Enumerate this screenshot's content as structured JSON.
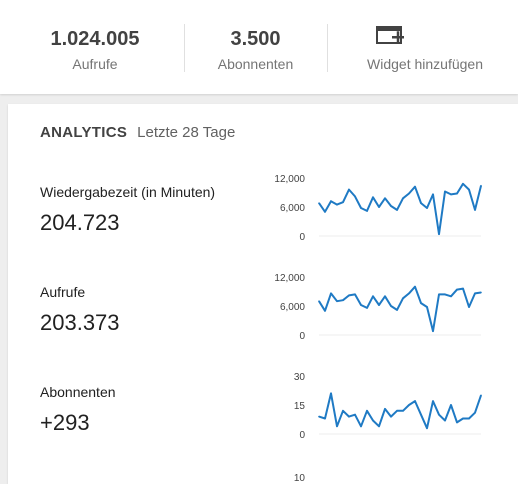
{
  "summary": {
    "views": {
      "value": "1.024.005",
      "label": "Aufrufe"
    },
    "subscribers": {
      "value": "3.500",
      "label": "Abonnenten"
    },
    "widget_button": {
      "label": "Widget hinzufügen",
      "icon": "add-widget-icon"
    }
  },
  "analytics": {
    "title": "ANALYTICS",
    "period": "Letzte 28 Tage",
    "metrics": [
      {
        "label": "Wiedergabezeit (in Minuten)",
        "value": "204.723"
      },
      {
        "label": "Aufrufe",
        "value": "203.373"
      },
      {
        "label": "Abonnenten",
        "value": "+293"
      }
    ]
  },
  "colors": {
    "line": "#1f7ac4",
    "accent_text": "#424242"
  },
  "chart_data": [
    {
      "type": "line",
      "ylim": [
        0,
        12000
      ],
      "yticks": [
        "12,000",
        "6,000",
        "0"
      ],
      "x": [
        1,
        2,
        3,
        4,
        5,
        6,
        7,
        8,
        9,
        10,
        11,
        12,
        13,
        14,
        15,
        16,
        17,
        18,
        19,
        20,
        21,
        22,
        23,
        24,
        25,
        26,
        27,
        28
      ],
      "values": [
        6800,
        5000,
        7200,
        6500,
        7000,
        9600,
        8200,
        5800,
        5200,
        8000,
        6000,
        7800,
        6200,
        5400,
        7800,
        8800,
        10200,
        6800,
        5800,
        8600,
        400,
        9200,
        8600,
        8800,
        10800,
        9600,
        5400,
        10400
      ]
    },
    {
      "type": "line",
      "ylim": [
        0,
        12000
      ],
      "yticks": [
        "12,000",
        "6,000",
        "0"
      ],
      "x": [
        1,
        2,
        3,
        4,
        5,
        6,
        7,
        8,
        9,
        10,
        11,
        12,
        13,
        14,
        15,
        16,
        17,
        18,
        19,
        20,
        21,
        22,
        23,
        24,
        25,
        26,
        27,
        28
      ],
      "values": [
        7000,
        5000,
        8600,
        7000,
        7200,
        8200,
        8400,
        6200,
        5600,
        8000,
        6200,
        8000,
        6000,
        5200,
        7600,
        8600,
        10000,
        6600,
        5800,
        800,
        8400,
        8400,
        8000,
        9400,
        9600,
        5800,
        8600,
        8800
      ]
    },
    {
      "type": "line",
      "ylim": [
        0,
        30
      ],
      "yticks": [
        "30",
        "15",
        "0"
      ],
      "x": [
        1,
        2,
        3,
        4,
        5,
        6,
        7,
        8,
        9,
        10,
        11,
        12,
        13,
        14,
        15,
        16,
        17,
        18,
        19,
        20,
        21,
        22,
        23,
        24,
        25,
        26,
        27,
        28
      ],
      "values": [
        9,
        8,
        21,
        4,
        12,
        9,
        10,
        4,
        12,
        7,
        4,
        13,
        9,
        12,
        12,
        15,
        17,
        10,
        3,
        17,
        10,
        7,
        15,
        6,
        8,
        8,
        11,
        20
      ]
    }
  ]
}
